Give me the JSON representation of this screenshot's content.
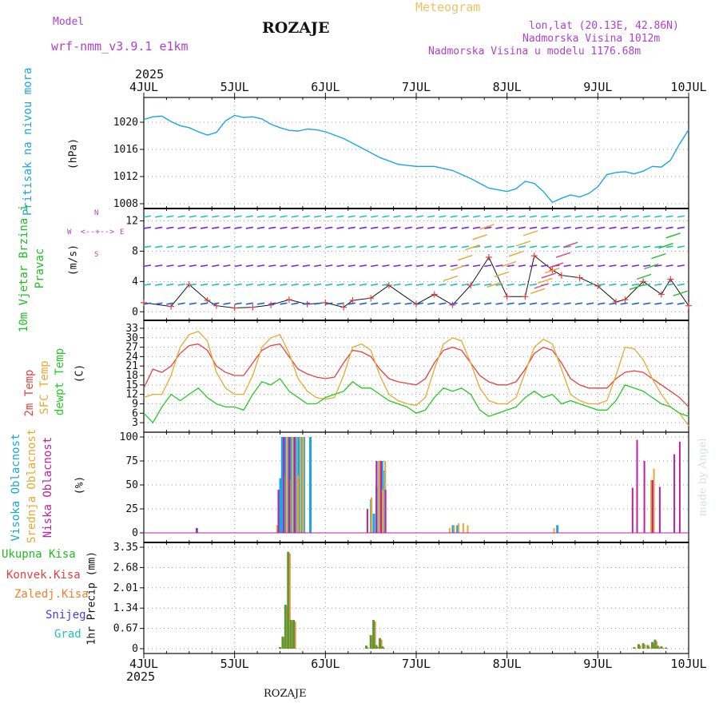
{
  "header": {
    "model_label": "Model",
    "model_name": "wrf-nmm_v3.9.1 e1km",
    "station": "ROZAJE",
    "meteogram": "Meteogram",
    "lonlat": "lon,lat (20.13E, 42.86N)",
    "elevation": "Nadmorska Visina 1012m",
    "model_elevation": "Nadmorska Visina u modelu 1176.68m",
    "year_top": "2025",
    "year_bottom": "2025",
    "footer_station": "ROZAJE",
    "credit": "made by Angel"
  },
  "colors": {
    "pressure": "#1aa6e6",
    "wind_label": "#22bb22",
    "temp2m": "#e84040",
    "sfc_temp": "#e8a830",
    "dewpt": "#22cc22",
    "high_cloud": "#1aa6e6",
    "mid_cloud": "#e8a830",
    "low_cloud": "#c020a0",
    "snow": "#4040e0",
    "grad": "#20c0c0",
    "conv": "#e84040",
    "zaledj": "#f08030",
    "header_purple": "#b040d0",
    "header_orange": "#f0c060"
  },
  "chart_data": [
    {
      "type": "line",
      "title": "Pritisak na nivou mora",
      "ylabel": "(hPa)",
      "x_tick_labels": [
        "4JUL",
        "5JUL",
        "6JUL",
        "7JUL",
        "8JUL",
        "9JUL",
        "10JUL"
      ],
      "xlim_days": [
        0,
        6
      ],
      "ylim": [
        1008,
        1022
      ],
      "y_ticks": [
        1008,
        1012,
        1016,
        1020
      ],
      "series": [
        {
          "name": "Pritisak na nivou mora",
          "x": [
            0,
            0.1,
            0.2,
            0.3,
            0.4,
            0.5,
            0.6,
            0.7,
            0.8,
            0.9,
            1.0,
            1.1,
            1.2,
            1.3,
            1.4,
            1.5,
            1.6,
            1.7,
            1.8,
            1.9,
            2.0,
            2.2,
            2.4,
            2.6,
            2.8,
            3.0,
            3.2,
            3.4,
            3.6,
            3.8,
            4.0,
            4.1,
            4.2,
            4.3,
            4.4,
            4.5,
            4.6,
            4.7,
            4.8,
            4.9,
            5.0,
            5.1,
            5.2,
            5.3,
            5.4,
            5.5,
            5.6,
            5.7,
            5.8,
            5.9,
            6.0
          ],
          "values": [
            1020.4,
            1020.8,
            1020.9,
            1020.1,
            1019.5,
            1019.2,
            1018.6,
            1018.1,
            1018.5,
            1020.2,
            1021.0,
            1020.7,
            1020.8,
            1020.5,
            1019.7,
            1019.2,
            1018.8,
            1018.7,
            1019.0,
            1018.9,
            1018.6,
            1017.6,
            1016.2,
            1014.8,
            1013.8,
            1013.5,
            1013.5,
            1012.9,
            1011.7,
            1010.3,
            1009.8,
            1010.2,
            1011.3,
            1011.0,
            1009.8,
            1008.2,
            1008.8,
            1009.3,
            1009.0,
            1009.5,
            1010.5,
            1012.3,
            1012.6,
            1012.7,
            1012.4,
            1012.8,
            1013.5,
            1013.4,
            1014.4,
            1016.8,
            1018.9
          ]
        }
      ]
    },
    {
      "type": "scatter",
      "title": "10m Vjetar Brzina i Pravac",
      "ylabel": "(m/s)",
      "compass": {
        "n": "N",
        "s": "S",
        "w": "W",
        "e": "E"
      },
      "xlim_days": [
        0,
        6
      ],
      "ylim": [
        -0.5,
        13
      ],
      "y_ticks": [
        0,
        4,
        8,
        12
      ],
      "series": [
        {
          "name": "speed",
          "x": [
            0,
            0.3,
            0.5,
            0.7,
            0.8,
            1.0,
            1.2,
            1.4,
            1.6,
            1.8,
            2.0,
            2.2,
            2.3,
            2.5,
            2.7,
            3.0,
            3.2,
            3.4,
            3.6,
            3.8,
            4.0,
            4.2,
            4.3,
            4.5,
            4.6,
            4.8,
            5.0,
            5.2,
            5.3,
            5.5,
            5.7,
            5.8,
            6.0
          ],
          "values": [
            1.2,
            0.7,
            3.6,
            1.5,
            0.8,
            0.5,
            0.6,
            0.9,
            1.6,
            1.0,
            1.2,
            0.6,
            1.5,
            1.8,
            3.5,
            1.0,
            2.3,
            0.9,
            3.5,
            7.2,
            2.0,
            2.0,
            7.4,
            5.5,
            4.8,
            4.5,
            3.4,
            1.3,
            1.6,
            4.0,
            2.3,
            4.3,
            0.8
          ]
        }
      ]
    },
    {
      "type": "line",
      "title": "2m Temp / SFC Temp / dewpt Temp",
      "ylabel": "(C)",
      "xlim_days": [
        0,
        6
      ],
      "ylim": [
        1.5,
        34
      ],
      "y_ticks": [
        3,
        6,
        9,
        12,
        15,
        18,
        21,
        24,
        27,
        30,
        33
      ],
      "series": [
        {
          "name": "2m Temp",
          "x": [
            0,
            0.1,
            0.2,
            0.3,
            0.4,
            0.5,
            0.6,
            0.7,
            0.8,
            0.9,
            1.0,
            1.1,
            1.2,
            1.3,
            1.4,
            1.5,
            1.6,
            1.7,
            1.8,
            1.9,
            2.0,
            2.1,
            2.2,
            2.3,
            2.4,
            2.5,
            2.6,
            2.7,
            2.8,
            2.9,
            3.0,
            3.1,
            3.2,
            3.3,
            3.4,
            3.5,
            3.6,
            3.7,
            3.8,
            3.9,
            4.0,
            4.1,
            4.2,
            4.3,
            4.4,
            4.5,
            4.6,
            4.7,
            4.8,
            4.9,
            5.0,
            5.1,
            5.2,
            5.3,
            5.4,
            5.5,
            5.6,
            5.7,
            5.8,
            5.9,
            6.0
          ],
          "values": [
            14,
            20,
            19,
            21,
            25,
            27.5,
            28,
            26,
            21,
            19,
            18,
            18,
            22,
            26,
            27.5,
            28,
            24,
            20,
            18.5,
            17.5,
            17,
            17.5,
            22,
            26,
            25.5,
            24,
            20,
            17,
            16,
            15.5,
            15,
            17,
            22,
            26,
            27,
            26,
            22,
            18,
            16,
            15,
            15,
            16,
            20,
            25,
            27,
            26,
            22,
            17,
            15,
            14,
            14,
            14,
            17,
            19,
            19.5,
            19,
            17,
            15,
            13,
            11,
            8
          ]
        },
        {
          "name": "SFC Temp",
          "x": [
            0,
            0.1,
            0.2,
            0.3,
            0.4,
            0.5,
            0.6,
            0.7,
            0.8,
            0.9,
            1.0,
            1.1,
            1.2,
            1.3,
            1.4,
            1.5,
            1.6,
            1.7,
            1.8,
            1.9,
            2.0,
            2.1,
            2.2,
            2.3,
            2.4,
            2.5,
            2.6,
            2.7,
            2.8,
            2.9,
            3.0,
            3.1,
            3.2,
            3.3,
            3.4,
            3.5,
            3.6,
            3.7,
            3.8,
            3.9,
            4.0,
            4.1,
            4.2,
            4.3,
            4.4,
            4.5,
            4.6,
            4.7,
            4.8,
            4.9,
            5.0,
            5.1,
            5.2,
            5.3,
            5.4,
            5.5,
            5.6,
            5.7,
            5.8,
            5.9,
            6.0
          ],
          "values": [
            11,
            12,
            12,
            18,
            27,
            31,
            32,
            29,
            19,
            14,
            12,
            12,
            18,
            27,
            30,
            31,
            25,
            17,
            13,
            11,
            10.5,
            11,
            18,
            27,
            28,
            26,
            18,
            12,
            10,
            9,
            8.5,
            11,
            20,
            28,
            30,
            29,
            22,
            14,
            10,
            9,
            9,
            11,
            19,
            27,
            29.5,
            28,
            20,
            12,
            10,
            9,
            9,
            10,
            18,
            27,
            26.5,
            23,
            17,
            12,
            8,
            6,
            2
          ]
        },
        {
          "name": "dewpt Temp",
          "x": [
            0,
            0.1,
            0.2,
            0.3,
            0.4,
            0.5,
            0.6,
            0.7,
            0.8,
            0.9,
            1.0,
            1.1,
            1.2,
            1.3,
            1.4,
            1.5,
            1.6,
            1.7,
            1.8,
            1.9,
            2.0,
            2.1,
            2.2,
            2.3,
            2.4,
            2.5,
            2.6,
            2.7,
            2.8,
            2.9,
            3.0,
            3.1,
            3.2,
            3.3,
            3.4,
            3.5,
            3.6,
            3.7,
            3.8,
            3.9,
            4.0,
            4.1,
            4.2,
            4.3,
            4.4,
            4.5,
            4.6,
            4.7,
            4.8,
            4.9,
            5.0,
            5.1,
            5.2,
            5.3,
            5.4,
            5.5,
            5.6,
            5.7,
            5.8,
            5.9,
            6.0
          ],
          "values": [
            6,
            3,
            8,
            12,
            10,
            12,
            14,
            11,
            9,
            8,
            8,
            7,
            12,
            16,
            15,
            17,
            13,
            11,
            9,
            9,
            11,
            12,
            13,
            16,
            14,
            14,
            12,
            10,
            9,
            8,
            6,
            7,
            11,
            14,
            13,
            14,
            12,
            7,
            5,
            6,
            7,
            8,
            11,
            13,
            11,
            12,
            9,
            10,
            9,
            8,
            7,
            7,
            10,
            15,
            14,
            13,
            11,
            9,
            8,
            6,
            5
          ]
        }
      ]
    },
    {
      "type": "bar",
      "title": "Visoka / Srednja / Niska Oblacnost",
      "ylabel": "(%)",
      "xlim_days": [
        0,
        6
      ],
      "ylim": [
        0,
        100
      ],
      "y_ticks": [
        0,
        25,
        50,
        75,
        100
      ],
      "series": [
        {
          "name": "Visoka Oblacnost",
          "x": [
            0.58,
            1.5,
            1.52,
            1.55,
            1.58,
            1.61,
            1.64,
            1.67,
            1.7,
            1.73,
            1.76,
            1.83,
            2.5,
            2.53,
            2.56,
            2.59,
            2.62,
            2.65,
            3.4,
            3.45,
            4.55
          ],
          "values": [
            5,
            57,
            100,
            100,
            100,
            100,
            100,
            100,
            100,
            100,
            100,
            100,
            35,
            20,
            48,
            75,
            75,
            65,
            8,
            8,
            8
          ]
        },
        {
          "name": "Srednja Oblacnost",
          "x": [
            1.45,
            1.53,
            1.56,
            1.59,
            1.62,
            1.65,
            1.68,
            1.71,
            1.74,
            2.49,
            2.55,
            2.58,
            2.61,
            2.64,
            3.35,
            3.4,
            3.45,
            3.5,
            3.55,
            4.5,
            5.57,
            5.6
          ],
          "values": [
            8,
            60,
            100,
            55,
            100,
            100,
            60,
            100,
            100,
            37,
            75,
            75,
            45,
            75,
            5,
            8,
            10,
            10,
            8,
            5,
            55,
            67
          ]
        },
        {
          "name": "Niska Oblacnost",
          "x": [
            0.6,
            1.5,
            1.56,
            1.62,
            1.68,
            2.48,
            2.58,
            2.63,
            2.68,
            5.4,
            5.45,
            5.53,
            5.62,
            5.7,
            5.86,
            5.92
          ],
          "values": [
            5,
            45,
            100,
            100,
            100,
            25,
            75,
            75,
            45,
            47,
            97,
            75,
            55,
            48,
            82,
            95
          ]
        }
      ]
    },
    {
      "type": "bar",
      "title": "1hr Precip",
      "ylabel": "1hr Precip (mm)",
      "legend": [
        "Ukupna Kisa",
        "Konvek.Kisa",
        "Zaledj.Kisa",
        "Snijeg",
        "Grad"
      ],
      "xlim_days": [
        0,
        6
      ],
      "ylim": [
        0,
        3.35
      ],
      "y_ticks": [
        0,
        0.67,
        1.34,
        2.01,
        2.68,
        3.35
      ],
      "series": [
        {
          "name": "Ukupna Kisa",
          "x": [
            1.5,
            1.53,
            1.56,
            1.59,
            1.62,
            1.65,
            2.45,
            2.5,
            2.53,
            2.56,
            2.6,
            2.63,
            5.4,
            5.45,
            5.5,
            5.55,
            5.6,
            5.63,
            5.66,
            5.7,
            5.75
          ],
          "values": [
            0.05,
            0.4,
            1.45,
            3.2,
            0.95,
            0.95,
            0.1,
            0.45,
            0.95,
            0.12,
            0.35,
            0.08,
            0.05,
            0.15,
            0.18,
            0.12,
            0.22,
            0.3,
            0.1,
            0.08,
            0.04
          ]
        }
      ]
    }
  ]
}
